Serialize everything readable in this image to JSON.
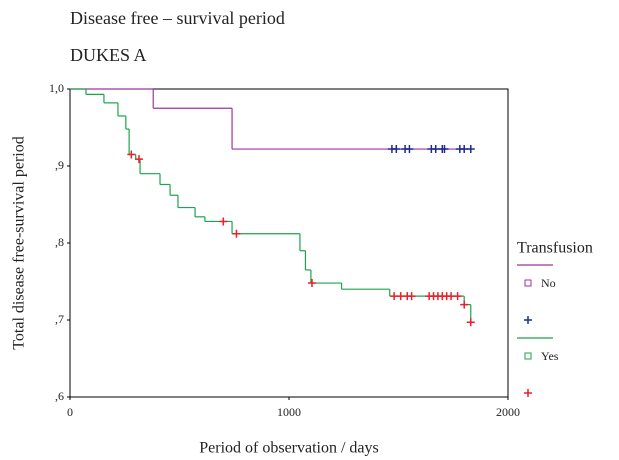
{
  "chart_data": {
    "type": "step",
    "title": "Disease free – survival period",
    "subtitle": "DUKES  A",
    "x_label": "Period of observation / days",
    "y_label": "Total disease free-survival period",
    "legend_title": "Transfusion",
    "legend_position": "right",
    "xlim": [
      0,
      2000
    ],
    "xticks": [
      0,
      1000,
      2000
    ],
    "ylim": [
      0.6,
      1.0
    ],
    "yticks": [
      {
        "value": 0.6,
        "label": ",6"
      },
      {
        "value": 0.7,
        "label": ",7"
      },
      {
        "value": 0.8,
        "label": ",8"
      },
      {
        "value": 0.9,
        "label": ",9"
      },
      {
        "value": 1.0,
        "label": "1,0"
      }
    ],
    "series": [
      {
        "name": "No",
        "color": "#a3329e",
        "x": [
          0,
          380,
          740,
          1830
        ],
        "values": [
          1.0,
          0.975,
          0.922,
          0.922
        ],
        "censored": {
          "color": "#1d2b8f",
          "x": [
            1470,
            1490,
            1530,
            1550,
            1650,
            1670,
            1700,
            1710,
            1780,
            1800,
            1830
          ],
          "values": [
            0.922,
            0.922,
            0.922,
            0.922,
            0.922,
            0.922,
            0.922,
            0.922,
            0.922,
            0.922,
            0.922
          ]
        }
      },
      {
        "name": "Yes",
        "color": "#1aa54a",
        "x": [
          0,
          73,
          155,
          219,
          255,
          270,
          300,
          320,
          411,
          457,
          493,
          571,
          616,
          740,
          1050,
          1075,
          1100,
          1240,
          1460,
          1800,
          1830
        ],
        "values": [
          1.0,
          0.993,
          0.982,
          0.965,
          0.948,
          0.915,
          0.909,
          0.89,
          0.876,
          0.862,
          0.846,
          0.834,
          0.828,
          0.812,
          0.79,
          0.765,
          0.748,
          0.74,
          0.731,
          0.72,
          0.697
        ],
        "censored": {
          "color": "#e8202a",
          "x": [
            280,
            315,
            700,
            760,
            1105,
            1480,
            1510,
            1540,
            1560,
            1640,
            1660,
            1680,
            1700,
            1720,
            1740,
            1770,
            1800,
            1830
          ],
          "values": [
            0.915,
            0.909,
            0.828,
            0.812,
            0.748,
            0.731,
            0.731,
            0.731,
            0.731,
            0.731,
            0.731,
            0.731,
            0.731,
            0.731,
            0.731,
            0.731,
            0.72,
            0.697
          ]
        }
      }
    ]
  }
}
